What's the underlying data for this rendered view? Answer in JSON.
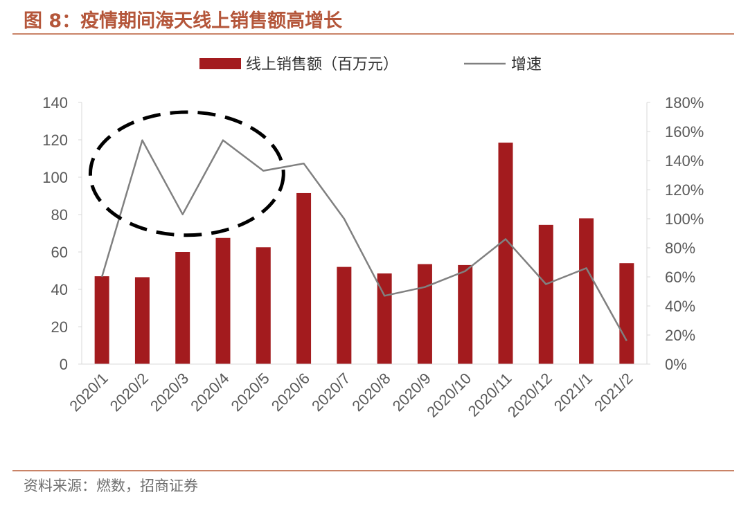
{
  "figure": {
    "title": "图 8：疫情期间海天线上销售额高增长",
    "source": "资料来源：燃数，招商证券"
  },
  "colors": {
    "bar": "#a31b1e",
    "line": "#808080",
    "title": "#b4563a",
    "rule": "#c98367",
    "annotation": "#000000"
  },
  "chart_data": {
    "type": "bar",
    "categories": [
      "2020/1",
      "2020/2",
      "2020/3",
      "2020/4",
      "2020/5",
      "2020/6",
      "2020/7",
      "2020/8",
      "2020/9",
      "2020/10",
      "2020/11",
      "2020/12",
      "2021/1",
      "2021/2"
    ],
    "series": [
      {
        "name": "线上销售额（百万元）",
        "type": "bar",
        "axis": "left",
        "values": [
          47,
          46.5,
          60,
          67.5,
          62.5,
          91.5,
          52,
          48.5,
          53.5,
          53,
          118.5,
          74.5,
          78,
          54
        ]
      },
      {
        "name": "增速",
        "type": "line",
        "axis": "right",
        "values": [
          0.6,
          1.54,
          1.03,
          1.54,
          1.33,
          1.38,
          1.0,
          0.47,
          0.53,
          0.64,
          0.86,
          0.55,
          0.66,
          0.16
        ]
      }
    ],
    "left_axis": {
      "ylim": [
        0,
        140
      ],
      "ticks": [
        0,
        20,
        40,
        60,
        80,
        100,
        120,
        140
      ]
    },
    "right_axis": {
      "ylim": [
        0,
        1.8
      ],
      "ticks": [
        "0%",
        "20%",
        "40%",
        "60%",
        "80%",
        "100%",
        "120%",
        "140%",
        "160%",
        "180%"
      ]
    },
    "legend_position": "top-center",
    "grid": false,
    "annotation": "dashed ellipse around 2020/2–2020/5 growth peaks"
  }
}
